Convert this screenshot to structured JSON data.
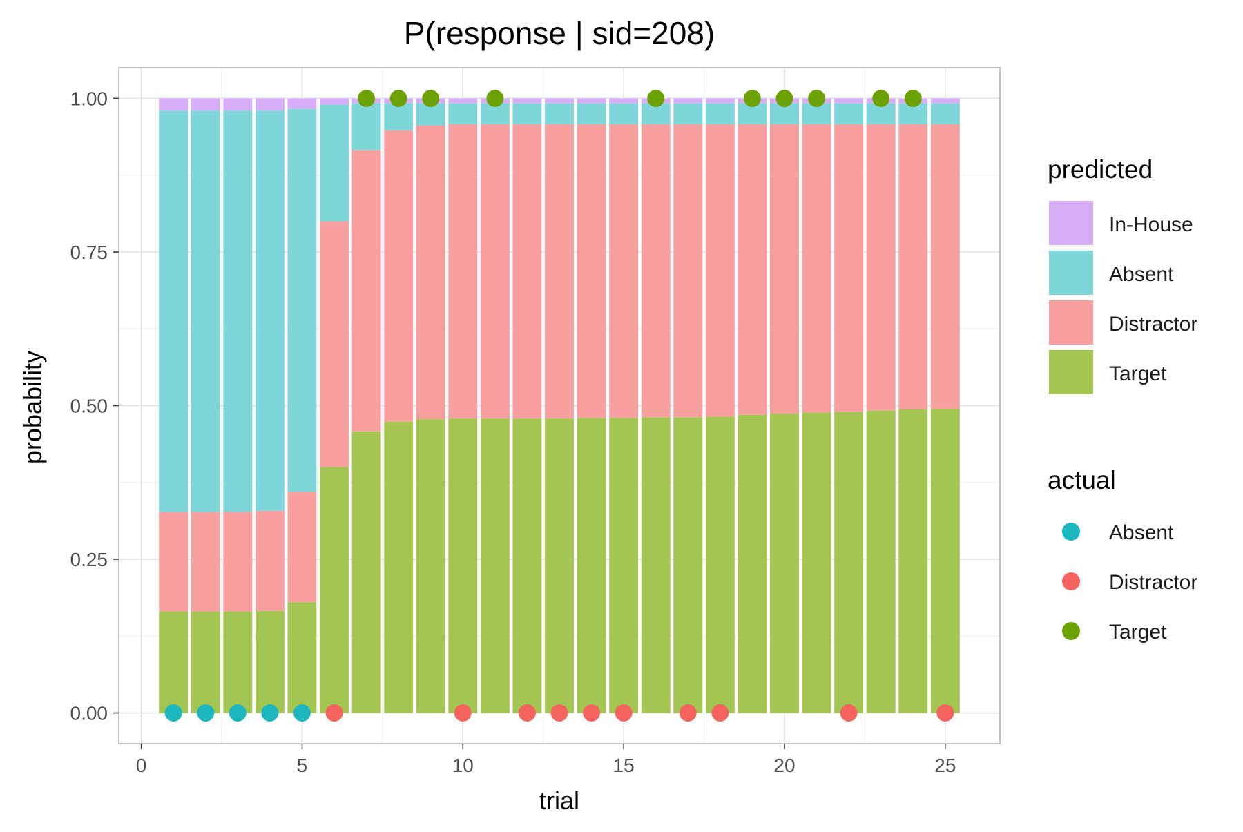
{
  "chart_data": {
    "type": "bar",
    "stacked": true,
    "title": "P(response | sid=208)",
    "xlabel": "trial",
    "ylabel": "probability",
    "xlim": [
      -0.7,
      26.7
    ],
    "ylim": [
      -0.05,
      1.05
    ],
    "x_ticks": [
      0,
      5,
      10,
      15,
      20,
      25
    ],
    "y_ticks": [
      0.0,
      0.25,
      0.5,
      0.75,
      1.0
    ],
    "y_tick_labels": [
      "0.00",
      "0.25",
      "0.50",
      "0.75",
      "1.00"
    ],
    "x": [
      1,
      2,
      3,
      4,
      5,
      6,
      7,
      8,
      9,
      10,
      11,
      12,
      13,
      14,
      15,
      16,
      17,
      18,
      19,
      20,
      21,
      22,
      23,
      24,
      25
    ],
    "grid": true,
    "legend_placement": "right",
    "predicted_legend_title": "predicted",
    "actual_legend_title": "actual",
    "series": [
      {
        "name": "Target",
        "color": "#A3C653",
        "values": [
          0.165,
          0.165,
          0.165,
          0.166,
          0.18,
          0.4,
          0.458,
          0.474,
          0.478,
          0.479,
          0.479,
          0.479,
          0.479,
          0.48,
          0.48,
          0.481,
          0.481,
          0.482,
          0.485,
          0.487,
          0.489,
          0.49,
          0.492,
          0.494,
          0.495
        ]
      },
      {
        "name": "Distractor",
        "color": "#F8A0A0",
        "values": [
          0.162,
          0.162,
          0.162,
          0.163,
          0.18,
          0.4,
          0.458,
          0.474,
          0.478,
          0.479,
          0.479,
          0.479,
          0.479,
          0.478,
          0.478,
          0.477,
          0.477,
          0.476,
          0.473,
          0.471,
          0.469,
          0.468,
          0.466,
          0.464,
          0.463
        ]
      },
      {
        "name": "Absent",
        "color": "#7FD6D9",
        "values": [
          0.653,
          0.653,
          0.653,
          0.651,
          0.623,
          0.19,
          0.076,
          0.044,
          0.036,
          0.034,
          0.034,
          0.034,
          0.034,
          0.034,
          0.034,
          0.034,
          0.034,
          0.034,
          0.034,
          0.034,
          0.034,
          0.034,
          0.034,
          0.034,
          0.034
        ]
      },
      {
        "name": "In-House",
        "color": "#D8ADF8",
        "values": [
          0.02,
          0.02,
          0.02,
          0.02,
          0.017,
          0.01,
          0.008,
          0.008,
          0.008,
          0.008,
          0.008,
          0.008,
          0.008,
          0.008,
          0.008,
          0.008,
          0.008,
          0.008,
          0.008,
          0.008,
          0.008,
          0.008,
          0.008,
          0.008,
          0.008
        ]
      }
    ],
    "predicted_legend_order": [
      "In-House",
      "Absent",
      "Distractor",
      "Target"
    ],
    "actual": [
      {
        "trial": 1,
        "response": "Absent"
      },
      {
        "trial": 2,
        "response": "Absent"
      },
      {
        "trial": 3,
        "response": "Absent"
      },
      {
        "trial": 4,
        "response": "Absent"
      },
      {
        "trial": 5,
        "response": "Absent"
      },
      {
        "trial": 6,
        "response": "Distractor"
      },
      {
        "trial": 7,
        "response": "Target"
      },
      {
        "trial": 8,
        "response": "Target"
      },
      {
        "trial": 9,
        "response": "Target"
      },
      {
        "trial": 10,
        "response": "Distractor"
      },
      {
        "trial": 11,
        "response": "Target"
      },
      {
        "trial": 12,
        "response": "Distractor"
      },
      {
        "trial": 13,
        "response": "Distractor"
      },
      {
        "trial": 14,
        "response": "Distractor"
      },
      {
        "trial": 15,
        "response": "Distractor"
      },
      {
        "trial": 16,
        "response": "Target"
      },
      {
        "trial": 17,
        "response": "Distractor"
      },
      {
        "trial": 18,
        "response": "Distractor"
      },
      {
        "trial": 19,
        "response": "Target"
      },
      {
        "trial": 20,
        "response": "Target"
      },
      {
        "trial": 21,
        "response": "Target"
      },
      {
        "trial": 22,
        "response": "Distractor"
      },
      {
        "trial": 23,
        "response": "Target"
      },
      {
        "trial": 24,
        "response": "Target"
      },
      {
        "trial": 25,
        "response": "Distractor"
      }
    ],
    "actual_legend": [
      {
        "name": "Absent",
        "color": "#1BB6BE"
      },
      {
        "name": "Distractor",
        "color": "#F4635E"
      },
      {
        "name": "Target",
        "color": "#6BA100"
      }
    ]
  }
}
